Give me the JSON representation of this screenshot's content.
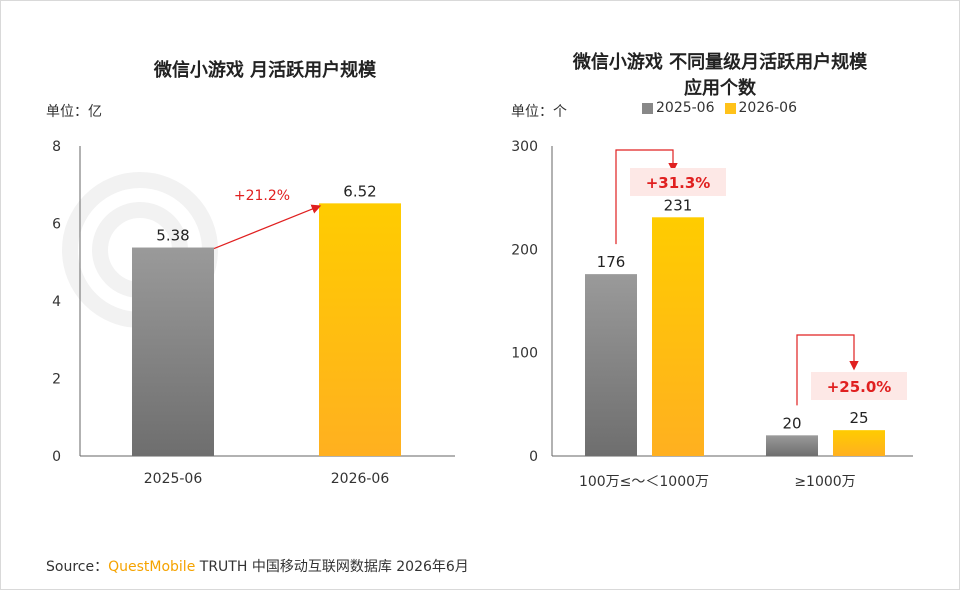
{
  "colors": {
    "grey": "#888888",
    "gold": "#ffc21a",
    "arrow": "#e02020",
    "pct_bg": "#fde8e6"
  },
  "left": {
    "title": "微信小游戏 月活跃用户规模",
    "unit": "单位：亿"
  },
  "right": {
    "title_line1": "微信小游戏 不同量级月活跃用户规模",
    "title_line2": "应用个数",
    "unit": "单位：个",
    "legend": [
      "2025-06",
      "2026-06"
    ]
  },
  "chart_data": [
    {
      "type": "bar",
      "title": "微信小游戏 月活跃用户规模",
      "ylabel": "单位：亿",
      "categories": [
        "2025-06",
        "2026-06"
      ],
      "values": [
        5.38,
        6.52
      ],
      "value_labels": [
        "5.38",
        "6.52"
      ],
      "ylim": [
        0,
        8
      ],
      "yticks": [
        "0",
        "2",
        "4",
        "6",
        "8"
      ],
      "annotation": "+21.2%"
    },
    {
      "type": "bar",
      "title": "微信小游戏 不同量级月活跃用户规模 应用个数",
      "ylabel": "单位：个",
      "categories": [
        "100万≤～＜1000万",
        "≥1000万"
      ],
      "series": [
        {
          "name": "2025-06",
          "values": [
            176,
            20
          ],
          "labels": [
            "176",
            "20"
          ]
        },
        {
          "name": "2026-06",
          "values": [
            231,
            25
          ],
          "labels": [
            "231",
            "25"
          ]
        }
      ],
      "ylim": [
        0,
        300
      ],
      "yticks": [
        "0",
        "100",
        "200",
        "300"
      ],
      "annotations": [
        "+31.3%",
        "+25.0%"
      ]
    }
  ],
  "source": {
    "prefix": "Source：",
    "brand": "QuestMobile",
    "rest": " TRUTH 中国移动互联网数据库 2026年6月"
  }
}
